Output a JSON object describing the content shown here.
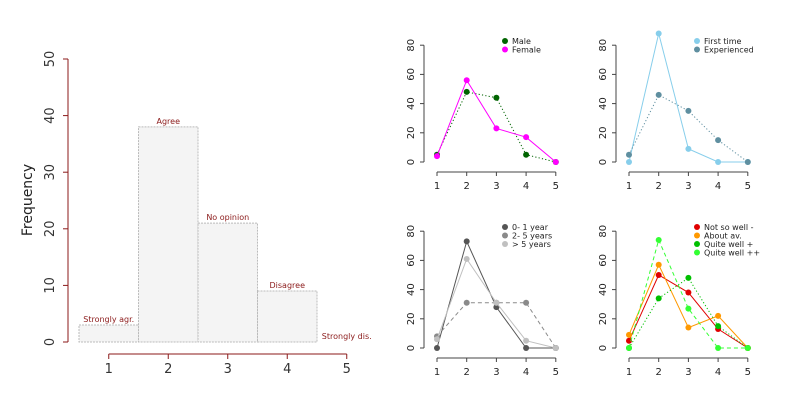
{
  "chart_data": [
    {
      "panel": "main-histogram",
      "type": "bar",
      "categories": [
        "1",
        "2",
        "3",
        "4",
        "5"
      ],
      "values": [
        3,
        38,
        21,
        9,
        0
      ],
      "bar_labels": [
        "Strongly agr.",
        "Agree",
        "No opinion",
        "Disagree",
        "Strongly dis."
      ],
      "ylabel": "Frequency",
      "ylim": [
        0,
        50
      ],
      "yticks": [
        "0",
        "10",
        "20",
        "30",
        "40",
        "50"
      ],
      "xticks": [
        "1",
        "2",
        "3",
        "4",
        "5"
      ],
      "colors": {
        "bar_fill": "#f4f4f4",
        "bar_stroke": "#bbbbbb",
        "label": "#8b1a1a",
        "axis": "#8b1a1a"
      }
    },
    {
      "panel": "gender",
      "type": "line",
      "x": [
        1,
        2,
        3,
        4,
        5
      ],
      "ylim": [
        0,
        80
      ],
      "yticks": [
        "0",
        "20",
        "40",
        "60",
        "80"
      ],
      "xticks": [
        "1",
        "2",
        "3",
        "4",
        "5"
      ],
      "legend_position": "top-right",
      "series": [
        {
          "name": "Male",
          "values": [
            5,
            48,
            44,
            5,
            0
          ],
          "color": "#006400",
          "dash": "dotted"
        },
        {
          "name": "Female",
          "values": [
            4,
            56,
            23,
            17,
            0
          ],
          "color": "#ff00ff",
          "dash": "solid"
        }
      ]
    },
    {
      "panel": "experience",
      "type": "line",
      "x": [
        1,
        2,
        3,
        4,
        5
      ],
      "ylim": [
        0,
        80
      ],
      "yticks": [
        "0",
        "20",
        "40",
        "60",
        "80"
      ],
      "xticks": [
        "1",
        "2",
        "3",
        "4",
        "5"
      ],
      "legend_position": "top-right",
      "series": [
        {
          "name": "First time",
          "values": [
            0,
            88,
            9,
            0,
            0
          ],
          "color": "#87ceeb",
          "dash": "solid"
        },
        {
          "name": "Experienced",
          "values": [
            5,
            46,
            35,
            15,
            0
          ],
          "color": "#5f8fa0",
          "dash": "dotted"
        }
      ]
    },
    {
      "panel": "years",
      "type": "line",
      "x": [
        1,
        2,
        3,
        4,
        5
      ],
      "ylim": [
        0,
        80
      ],
      "yticks": [
        "0",
        "20",
        "40",
        "60",
        "80"
      ],
      "xticks": [
        "1",
        "2",
        "3",
        "4",
        "5"
      ],
      "legend_position": "top-right",
      "series": [
        {
          "name": "0- 1 year",
          "values": [
            0,
            73,
            28,
            0,
            0
          ],
          "color": "#555555",
          "dash": "solid"
        },
        {
          "name": "2- 5 years",
          "values": [
            8,
            31,
            31,
            31,
            0
          ],
          "color": "#8a8a8a",
          "dash": "dashed"
        },
        {
          "name": "> 5 years",
          "values": [
            6,
            61,
            31,
            5,
            0
          ],
          "color": "#c0c0c0",
          "dash": "solid"
        }
      ]
    },
    {
      "panel": "wellness",
      "type": "line",
      "x": [
        1,
        2,
        3,
        4,
        5
      ],
      "ylim": [
        0,
        80
      ],
      "yticks": [
        "0",
        "20",
        "40",
        "60",
        "80"
      ],
      "xticks": [
        "1",
        "2",
        "3",
        "4",
        "5"
      ],
      "legend_position": "top-right",
      "series": [
        {
          "name": "Not so well -",
          "values": [
            5,
            50,
            38,
            13,
            0
          ],
          "color": "#e00000",
          "dash": "solid"
        },
        {
          "name": "About av.",
          "values": [
            9,
            57,
            14,
            22,
            0
          ],
          "color": "#ff9900",
          "dash": "solid"
        },
        {
          "name": "Quite well +",
          "values": [
            0,
            34,
            48,
            15,
            0
          ],
          "color": "#00c000",
          "dash": "dotted"
        },
        {
          "name": "Quite well ++",
          "values": [
            0,
            74,
            27,
            0,
            0
          ],
          "color": "#33ff33",
          "dash": "dashed"
        }
      ]
    }
  ]
}
